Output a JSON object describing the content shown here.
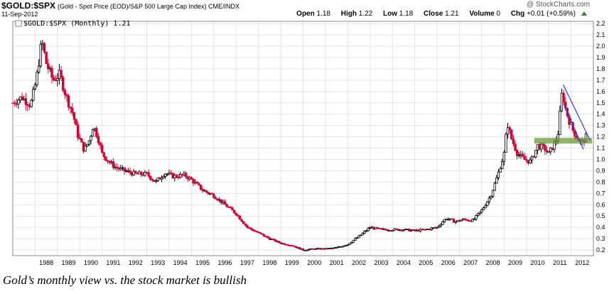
{
  "header": {
    "ticker": "$GOLD:$SPX",
    "description": "(Gold - Spot Price (EOD)/S&P 500 Large Cap Index) CME/INDX",
    "date": "11-Sep-2012",
    "brand": "@ StockCharts.com",
    "open_label": "Open",
    "open": "1.18",
    "high_label": "High",
    "high": "1.22",
    "low_label": "Low",
    "low": "1.18",
    "close_label": "Close",
    "close": "1.21",
    "volume_label": "Volume",
    "volume": "0",
    "chg_label": "Chg",
    "chg": "+0.01 (+0.59%)"
  },
  "legend_text": "$GOLD:$SPX (Monthly) 1.21",
  "caption": "Gold’s monthly view vs. the stock market is bullish",
  "colors": {
    "up": "#000000",
    "down": "#cc0033",
    "support": "#6e9a3c",
    "trend": "#3333ff",
    "grid": "#e3e3e3"
  },
  "chart_data": {
    "type": "candlestick",
    "period": "monthly",
    "series_name": "$GOLD:$SPX",
    "x_ticks": [
      "1988",
      "1989",
      "1990",
      "1991",
      "1992",
      "1993",
      "1994",
      "1995",
      "1996",
      "1997",
      "1998",
      "1999",
      "2000",
      "2001",
      "2002",
      "2003",
      "2004",
      "2005",
      "2006",
      "2007",
      "2008",
      "2009",
      "2010",
      "2011",
      "2012"
    ],
    "y_ticks": [
      0.2,
      0.3,
      0.4,
      0.5,
      0.6,
      0.7,
      0.8,
      0.9,
      1.0,
      1.1,
      1.2,
      1.3,
      1.4,
      1.5,
      1.6,
      1.7,
      1.8,
      1.9,
      2.0,
      2.1,
      2.2
    ],
    "xlim": [
      1987.0,
      2013.0
    ],
    "ylim": [
      0.15,
      2.22
    ],
    "grid": true,
    "y_axis_position": "right",
    "close_path": [
      [
        1987.0,
        1.5
      ],
      [
        1987.4,
        1.55
      ],
      [
        1987.8,
        1.48
      ],
      [
        1988.05,
        1.7
      ],
      [
        1988.3,
        2.05
      ],
      [
        1988.5,
        1.85
      ],
      [
        1988.8,
        1.7
      ],
      [
        1989.1,
        1.75
      ],
      [
        1989.4,
        1.55
      ],
      [
        1989.7,
        1.4
      ],
      [
        1989.9,
        1.22
      ],
      [
        1990.2,
        1.08
      ],
      [
        1990.45,
        1.18
      ],
      [
        1990.6,
        1.3
      ],
      [
        1990.8,
        1.2
      ],
      [
        1991.0,
        1.05
      ],
      [
        1991.3,
        0.98
      ],
      [
        1991.6,
        0.93
      ],
      [
        1992.0,
        0.9
      ],
      [
        1992.5,
        0.87
      ],
      [
        1993.0,
        0.87
      ],
      [
        1993.4,
        0.8
      ],
      [
        1993.8,
        0.88
      ],
      [
        1994.2,
        0.85
      ],
      [
        1994.7,
        0.86
      ],
      [
        1995.0,
        0.82
      ],
      [
        1995.5,
        0.73
      ],
      [
        1996.0,
        0.68
      ],
      [
        1996.5,
        0.6
      ],
      [
        1997.0,
        0.52
      ],
      [
        1997.5,
        0.4
      ],
      [
        1998.0,
        0.35
      ],
      [
        1998.5,
        0.3
      ],
      [
        1999.0,
        0.26
      ],
      [
        1999.5,
        0.24
      ],
      [
        2000.0,
        0.2
      ],
      [
        2000.5,
        0.21
      ],
      [
        2001.0,
        0.21
      ],
      [
        2001.5,
        0.22
      ],
      [
        2002.0,
        0.25
      ],
      [
        2002.5,
        0.32
      ],
      [
        2003.0,
        0.4
      ],
      [
        2003.5,
        0.38
      ],
      [
        2004.0,
        0.38
      ],
      [
        2004.5,
        0.38
      ],
      [
        2005.0,
        0.37
      ],
      [
        2005.5,
        0.38
      ],
      [
        2006.0,
        0.4
      ],
      [
        2006.4,
        0.48
      ],
      [
        2006.8,
        0.45
      ],
      [
        2007.2,
        0.47
      ],
      [
        2007.6,
        0.46
      ],
      [
        2008.0,
        0.55
      ],
      [
        2008.4,
        0.68
      ],
      [
        2008.7,
        0.85
      ],
      [
        2009.0,
        1.05
      ],
      [
        2009.15,
        1.32
      ],
      [
        2009.3,
        1.2
      ],
      [
        2009.6,
        1.05
      ],
      [
        2009.9,
        1.0
      ],
      [
        2010.2,
        0.98
      ],
      [
        2010.5,
        1.12
      ],
      [
        2010.8,
        1.1
      ],
      [
        2011.0,
        1.05
      ],
      [
        2011.2,
        1.12
      ],
      [
        2011.4,
        1.2
      ],
      [
        2011.6,
        1.6
      ],
      [
        2011.75,
        1.45
      ],
      [
        2011.9,
        1.35
      ],
      [
        2012.1,
        1.25
      ],
      [
        2012.3,
        1.18
      ],
      [
        2012.5,
        1.15
      ],
      [
        2012.7,
        1.21
      ]
    ]
  }
}
